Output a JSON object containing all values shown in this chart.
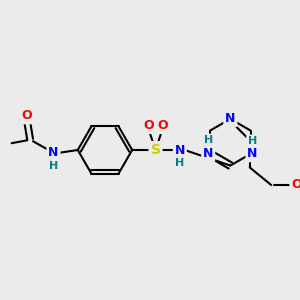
{
  "background_color": "#ebebeb",
  "bond_color": "#000000",
  "atom_colors": {
    "N": "#0000ff",
    "O": "#ff0000",
    "S": "#cccc00",
    "C": "#000000",
    "H": "#008080"
  },
  "figsize": [
    3.0,
    3.0
  ],
  "dpi": 100
}
